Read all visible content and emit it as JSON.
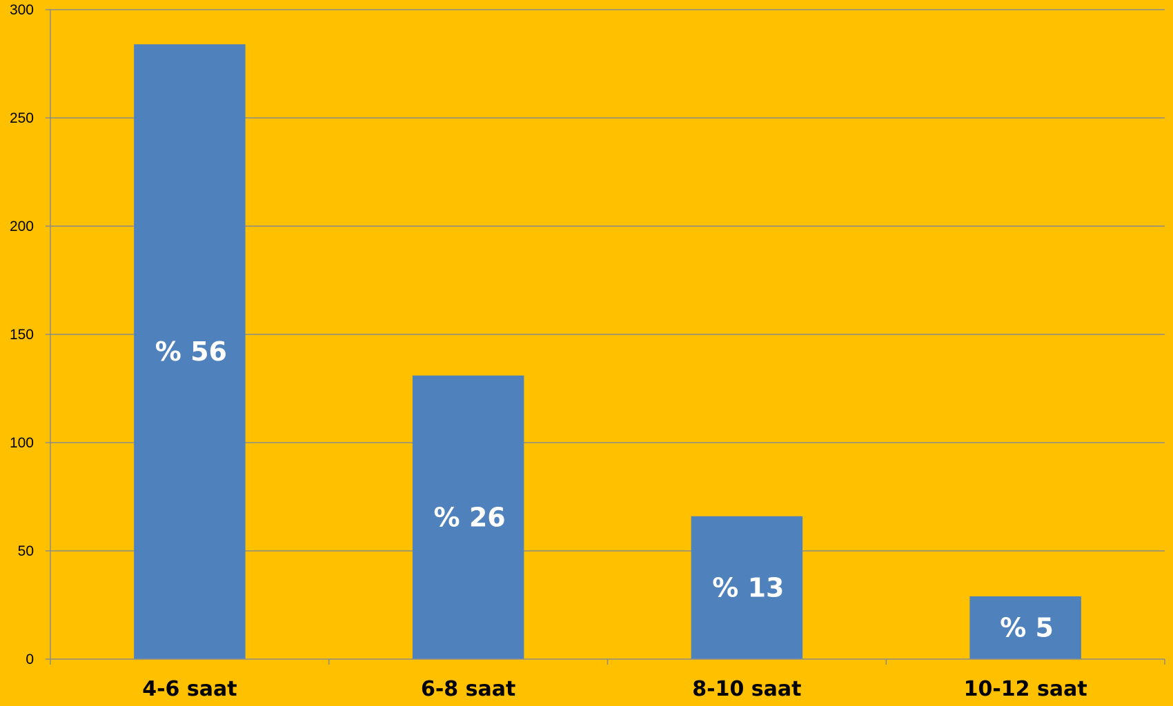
{
  "chart_data": {
    "type": "bar",
    "categories": [
      "4-6 saat",
      "6-8 saat",
      "8-10 saat",
      "10-12 saat"
    ],
    "values": [
      284,
      131,
      66,
      29
    ],
    "data_labels": [
      "% 56",
      "% 26",
      "% 13",
      "% 5"
    ],
    "title": "",
    "xlabel": "",
    "ylabel": "",
    "ylim": [
      0,
      300
    ],
    "yticks": [
      0,
      50,
      100,
      150,
      200,
      250,
      300
    ],
    "ytick_labels": [
      "0",
      "50",
      "100",
      "150",
      "200",
      "250",
      "300"
    ],
    "grid": true,
    "legend": "none",
    "colors": {
      "background": "#FFC000",
      "bar": "#4F81BD",
      "gridline": "#8C8C8C",
      "axis": "#8C8C8C",
      "data_label": "#FFFFFF",
      "text": "#000000"
    }
  }
}
